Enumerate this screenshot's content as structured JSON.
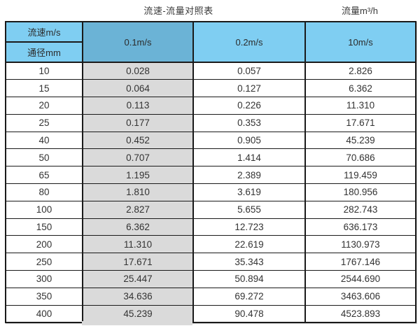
{
  "page": {
    "title": "流速-流量对照表",
    "unit_label": "流量m³/h"
  },
  "table": {
    "header": {
      "velocity_label": "流速m/s",
      "diameter_label": "通径mm",
      "col_01": "0.1m/s",
      "col_02": "0.2m/s",
      "col_10": "10m/s"
    },
    "rows": [
      [
        "10",
        "0.028",
        "0.057",
        "2.826"
      ],
      [
        "15",
        "0.064",
        "0.127",
        "6.362"
      ],
      [
        "20",
        "0.113",
        "0.226",
        "11.310"
      ],
      [
        "25",
        "0.177",
        "0.353",
        "17.671"
      ],
      [
        "40",
        "0.452",
        "0.905",
        "45.239"
      ],
      [
        "50",
        "0.707",
        "1.414",
        "70.686"
      ],
      [
        "65",
        "1.195",
        "2.389",
        "119.459"
      ],
      [
        "80",
        "1.810",
        "3.619",
        "180.956"
      ],
      [
        "100",
        "2.827",
        "5.655",
        "282.743"
      ],
      [
        "150",
        "6.362",
        "12.723",
        "636.173"
      ],
      [
        "200",
        "11.310",
        "22.619",
        "1130.973"
      ],
      [
        "250",
        "17.671",
        "35.343",
        "1767.146"
      ],
      [
        "300",
        "25.447",
        "50.894",
        "2544.690"
      ],
      [
        "350",
        "34.636",
        "69.272",
        "3463.606"
      ],
      [
        "400",
        "45.239",
        "90.478",
        "4523.893"
      ]
    ]
  },
  "colors": {
    "header_light": "#7FCEF2",
    "header_dark": "#6BB3D6",
    "shaded": "#DADADA",
    "border": "#1A1A1A"
  },
  "chart_data": {
    "type": "table",
    "title": "流速-流量对照表",
    "unit": "流量m³/h",
    "columns": [
      "通径mm",
      "0.1m/s",
      "0.2m/s",
      "10m/s"
    ],
    "rows": [
      [
        10,
        0.028,
        0.057,
        2.826
      ],
      [
        15,
        0.064,
        0.127,
        6.362
      ],
      [
        20,
        0.113,
        0.226,
        11.31
      ],
      [
        25,
        0.177,
        0.353,
        17.671
      ],
      [
        40,
        0.452,
        0.905,
        45.239
      ],
      [
        50,
        0.707,
        1.414,
        70.686
      ],
      [
        65,
        1.195,
        2.389,
        119.459
      ],
      [
        80,
        1.81,
        3.619,
        180.956
      ],
      [
        100,
        2.827,
        5.655,
        282.743
      ],
      [
        150,
        6.362,
        12.723,
        636.173
      ],
      [
        200,
        11.31,
        22.619,
        1130.973
      ],
      [
        250,
        17.671,
        35.343,
        1767.146
      ],
      [
        300,
        25.447,
        50.894,
        2544.69
      ],
      [
        350,
        34.636,
        69.272,
        3463.606
      ],
      [
        400,
        45.239,
        90.478,
        4523.893
      ]
    ]
  }
}
